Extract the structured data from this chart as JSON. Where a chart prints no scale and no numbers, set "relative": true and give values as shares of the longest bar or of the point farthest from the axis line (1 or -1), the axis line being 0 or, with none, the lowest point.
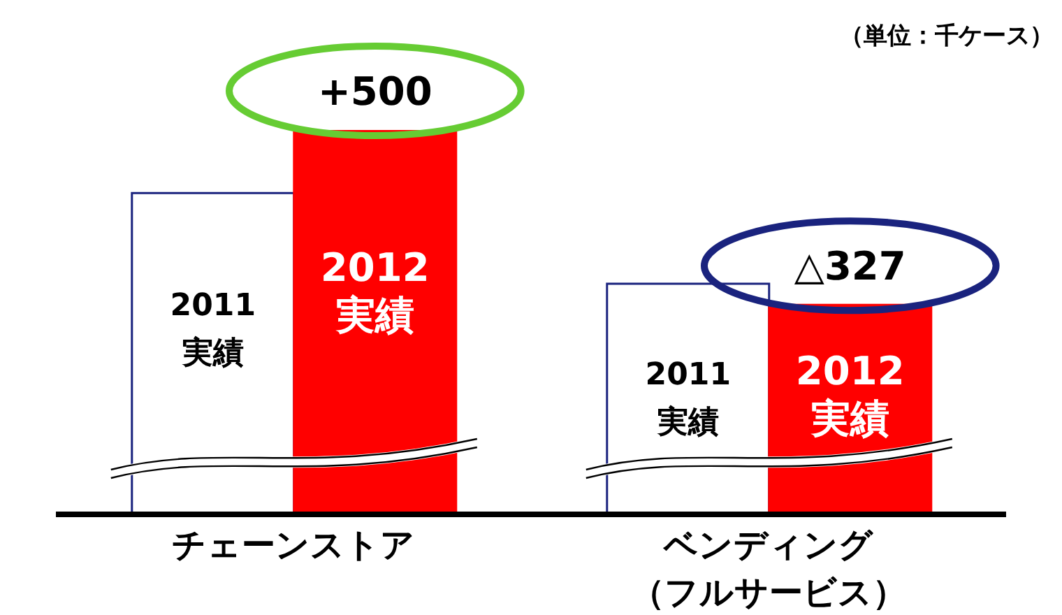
{
  "chart_data": {
    "type": "bar",
    "relative": true,
    "categories": [
      "チェーンストア",
      "ベンディング（フルサービス）"
    ],
    "series": [
      {
        "name": "2011 実績",
        "color": "#ffffff",
        "values": [
          0.836,
          0.6
        ]
      },
      {
        "name": "2012 実績",
        "color": "#ff0000",
        "values": [
          1,
          0.545
        ]
      }
    ],
    "annotations": [
      {
        "text": "+500",
        "x": "チェーンストア",
        "y": 1
      },
      {
        "text": "△327",
        "x": "ベンディング（フルサービス）",
        "y": 0.545
      },
      {
        "text": "2011 実績",
        "x": "ベンディング（フルサービス）",
        "y": 0.28
      },
      {
        "text": "2012 実績",
        "x": "ベンディング（フルサービス）",
        "y": 0.28
      },
      "（単位：千ケース）"
    ],
    "legend": false,
    "grid": false
  }
}
